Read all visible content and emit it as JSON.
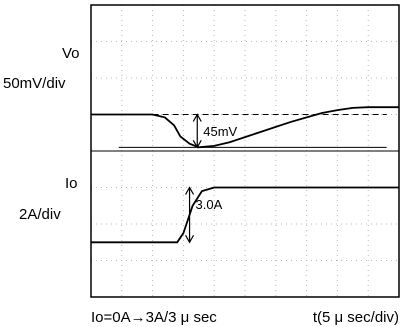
{
  "chart_data": {
    "type": "line",
    "title": "",
    "xlabel": "t(5 μ sec/div)",
    "caption": "Io=0A→3A/3 μ sec",
    "grid": true,
    "divisions": {
      "x": 10,
      "y": 8
    },
    "x_unit": "div",
    "xlim": [
      0,
      10
    ],
    "channels": [
      {
        "name": "Vo",
        "scale": "50mV/div",
        "unit_y": "mV",
        "ylim": [
          -50,
          150
        ],
        "x": [
          0,
          1.0,
          2.0,
          2.4,
          2.7,
          2.9,
          3.2,
          3.5,
          4.0,
          4.5,
          5.0,
          5.5,
          6.0,
          6.5,
          7.0,
          7.5,
          8.0,
          8.5,
          9.0,
          9.5,
          10.0
        ],
        "y": [
          0,
          0,
          0,
          -4,
          -15,
          -30,
          -40,
          -45,
          -43,
          -38,
          -31,
          -24,
          -17,
          -10,
          -4,
          2,
          6,
          9,
          10,
          10,
          10
        ],
        "reference_level": 0,
        "annotation": {
          "text": "45mV",
          "value": -45
        }
      },
      {
        "name": "Io",
        "scale": "2A/div",
        "unit_y": "A",
        "ylim": [
          -3,
          5
        ],
        "x": [
          0,
          1.0,
          2.0,
          2.8,
          3.0,
          3.3,
          3.6,
          4.0,
          4.5,
          5.0,
          6.0,
          7.0,
          8.0,
          9.0,
          10.0
        ],
        "y": [
          0,
          0,
          0,
          0,
          0.5,
          2.0,
          2.8,
          3.0,
          3.0,
          3.0,
          3.0,
          3.0,
          3.0,
          3.0,
          3.0
        ],
        "annotation": {
          "text": "3.0A",
          "value": 3.0
        }
      }
    ]
  },
  "labels": {
    "vo_name": "Vo",
    "vo_scale": "50mV/div",
    "io_name": "Io",
    "io_scale": "2A/div"
  },
  "colors": {
    "trace": "#000000",
    "grid": "#b8b8b8",
    "frame": "#000000"
  }
}
